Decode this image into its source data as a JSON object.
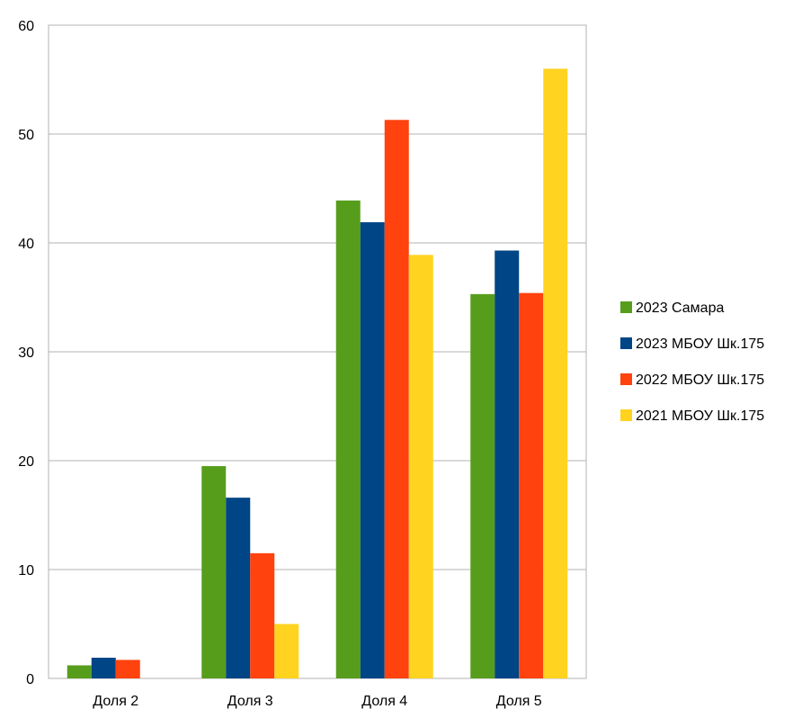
{
  "chart_data": {
    "type": "bar",
    "categories": [
      "Доля 2",
      "Доля 3",
      "Доля 4",
      "Доля 5"
    ],
    "series": [
      {
        "name": "2023 Самара",
        "color": "#579D1C",
        "values": [
          1.2,
          19.5,
          43.9,
          35.3
        ]
      },
      {
        "name": "2023 МБОУ Шк.175",
        "color": "#004586",
        "values": [
          1.9,
          16.6,
          41.9,
          39.3
        ]
      },
      {
        "name": "2022 МБОУ Шк.175",
        "color": "#FF420E",
        "values": [
          1.7,
          11.5,
          51.3,
          35.4
        ]
      },
      {
        "name": "2021 МБОУ Шк.175",
        "color": "#FFD320",
        "values": [
          0,
          5.0,
          38.9,
          56.0
        ]
      }
    ],
    "ylim": [
      0,
      60
    ],
    "yticks": [
      0,
      10,
      20,
      30,
      40,
      50,
      60
    ],
    "grid": true,
    "legend": "right",
    "title": "",
    "xlabel": "",
    "ylabel": ""
  }
}
